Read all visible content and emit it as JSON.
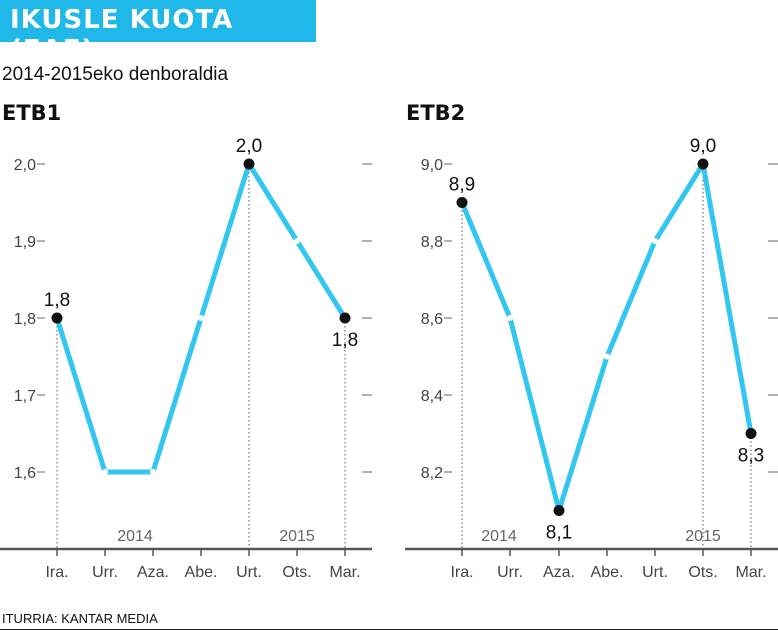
{
  "header": {
    "title": "IKUSLE KUOTA (EAE)"
  },
  "subtitle": "2014-2015eko denboraldia",
  "source": "ITURRIA: KANTAR MEDIA",
  "colors": {
    "accent": "#1fb8e8",
    "line": "#33c6f0",
    "marker": "#111111"
  },
  "chart_data": [
    {
      "type": "line",
      "title": "ETB1",
      "categories": [
        "Ira.",
        "Urr.",
        "Aza.",
        "Abe.",
        "Urt.",
        "Ots.",
        "Mar."
      ],
      "values": [
        1.8,
        1.6,
        1.6,
        1.8,
        2.0,
        1.9,
        1.8
      ],
      "yticks": [
        "1,6",
        "1,7",
        "1,8",
        "1,9",
        "2,0"
      ],
      "ylim": [
        1.55,
        2.0
      ],
      "labeled_points": [
        {
          "index": 0,
          "label": "1,8"
        },
        {
          "index": 4,
          "label": "2,0"
        },
        {
          "index": 6,
          "label": "1,8"
        }
      ],
      "year_labels": [
        "2014",
        "2015"
      ]
    },
    {
      "type": "line",
      "title": "ETB2",
      "categories": [
        "Ira.",
        "Urr.",
        "Aza.",
        "Abe.",
        "Urt.",
        "Ots.",
        "Mar."
      ],
      "values": [
        8.9,
        8.6,
        8.1,
        8.5,
        8.8,
        9.0,
        8.3
      ],
      "yticks": [
        "8,2",
        "8,4",
        "8,6",
        "8,8",
        "9,0"
      ],
      "ylim": [
        8.1,
        9.0
      ],
      "labeled_points": [
        {
          "index": 0,
          "label": "8,9"
        },
        {
          "index": 2,
          "label": "8,1"
        },
        {
          "index": 5,
          "label": "9,0"
        },
        {
          "index": 6,
          "label": "8,3"
        }
      ],
      "year_labels": [
        "2014",
        "2015"
      ]
    }
  ]
}
